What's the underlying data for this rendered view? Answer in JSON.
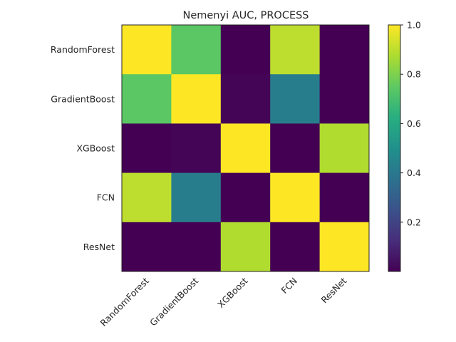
{
  "chart_data": {
    "type": "heatmap",
    "title": "Nemenyi AUC, PROCESS",
    "xlabel": "",
    "ylabel": "",
    "x_categories": [
      "RandomForest",
      "GradientBoost",
      "XGBoost",
      "FCN",
      "ResNet"
    ],
    "y_categories": [
      "RandomForest",
      "GradientBoost",
      "XGBoost",
      "FCN",
      "ResNet"
    ],
    "matrix": [
      [
        1.0,
        0.74,
        0.0,
        0.9,
        0.0
      ],
      [
        0.74,
        1.0,
        0.01,
        0.42,
        0.0
      ],
      [
        0.0,
        0.01,
        1.0,
        0.0,
        0.88
      ],
      [
        0.9,
        0.42,
        0.0,
        1.0,
        0.0
      ],
      [
        0.0,
        0.0,
        0.88,
        0.0,
        1.0
      ]
    ],
    "colormap": "viridis",
    "colorbar": {
      "vmin": 0.0,
      "vmax": 1.0,
      "ticks": [
        0.2,
        0.4,
        0.6,
        0.8,
        1.0
      ],
      "tick_labels": [
        "0.2",
        "0.4",
        "0.6",
        "0.8",
        "1.0"
      ]
    },
    "grid": false
  }
}
